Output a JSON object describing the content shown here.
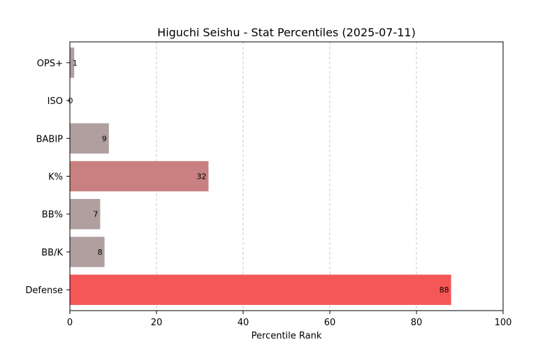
{
  "chart_data": {
    "type": "bar",
    "orientation": "horizontal",
    "title": "Higuchi Seishu - Stat Percentiles (2025-07-11)",
    "xlabel": "Percentile Rank",
    "ylabel": "",
    "xlim": [
      0,
      100
    ],
    "xticks": [
      0,
      20,
      40,
      60,
      80,
      100
    ],
    "grid": "vertical-dashed",
    "categories": [
      "OPS+",
      "ISO",
      "BABIP",
      "K%",
      "BB%",
      "BB/K",
      "Defense"
    ],
    "values": [
      1,
      0,
      9,
      32,
      7,
      8,
      88
    ],
    "bar_colors": [
      "#afa09f",
      "#afa09f",
      "#afa09f",
      "#c88080",
      "#afa09f",
      "#afa09f",
      "#f55656"
    ]
  }
}
